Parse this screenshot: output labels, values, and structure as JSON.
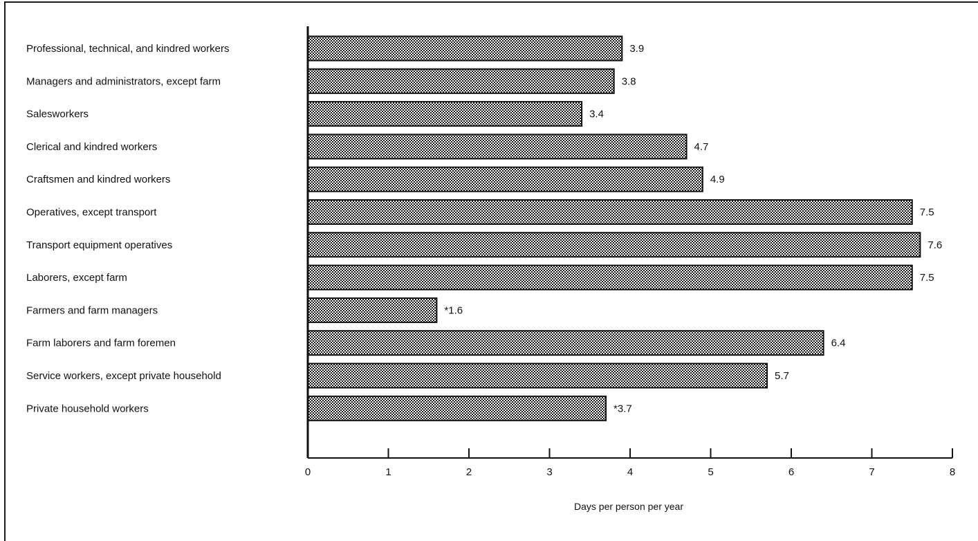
{
  "chart_data": {
    "type": "bar",
    "orientation": "horizontal",
    "categories": [
      "Professional, technical, and kindred workers",
      "Managers and administrators, except farm",
      "Salesworkers",
      "Clerical and kindred workers",
      "Craftsmen and kindred workers",
      "Operatives, except transport",
      "Transport equipment operatives",
      "Laborers, except farm",
      "Farmers and farm managers",
      "Farm laborers and farm foremen",
      "Service workers, except private household",
      "Private household workers"
    ],
    "values": [
      3.9,
      3.8,
      3.4,
      4.7,
      4.9,
      7.5,
      7.6,
      7.5,
      1.6,
      6.4,
      5.7,
      3.7
    ],
    "value_labels": [
      "3.9",
      "3.8",
      "3.4",
      "4.7",
      "4.9",
      "7.5",
      "7.6",
      "7.5",
      "*1.6",
      "6.4",
      "5.7",
      "*3.7"
    ],
    "xlabel": "Days per person per year",
    "ylabel": "",
    "title": "",
    "xlim": [
      0,
      8
    ],
    "xticks": [
      "0",
      "1",
      "2",
      "3",
      "4",
      "5",
      "6",
      "7",
      "8"
    ],
    "grid": false,
    "bar_pattern": "crosshatch",
    "colors": {
      "ink": "#111111",
      "bar_fill": "#ffffff"
    }
  }
}
